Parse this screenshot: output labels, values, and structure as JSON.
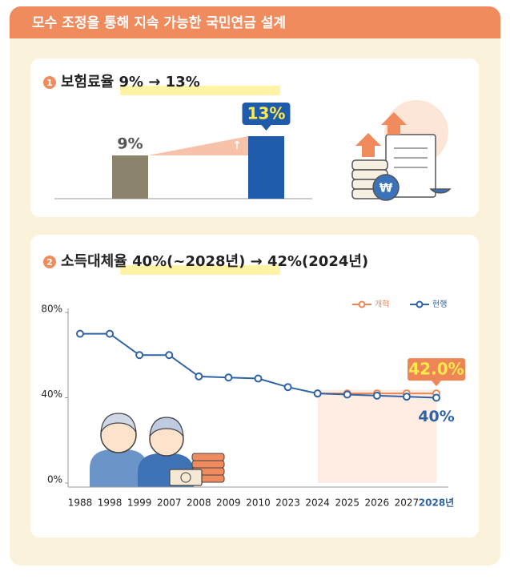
{
  "header": {
    "title": "모수 조정을 통해 지속 가능한 국민연금 설계"
  },
  "chart_data": [
    {
      "type": "bar",
      "badge": "1",
      "title": "보험료율 9% → 13%",
      "values": [
        9,
        13
      ],
      "value_labels": [
        "9%",
        "13%"
      ],
      "colors": [
        "#8c836c",
        "#1f5bab"
      ],
      "ylim": [
        0,
        14
      ]
    },
    {
      "type": "line",
      "badge": "2",
      "title": "소득대체율 40%(~2028년) → 42%(2024년)",
      "categories": [
        "1988",
        "1998",
        "1999",
        "2007",
        "2008",
        "2009",
        "2010",
        "2023",
        "2024",
        "2025",
        "2026",
        "2027",
        "2028년"
      ],
      "series": [
        {
          "name": "개혁",
          "color": "#ee8556",
          "values": [
            null,
            null,
            null,
            null,
            null,
            null,
            null,
            null,
            42,
            42,
            42,
            42,
            42
          ],
          "value_labels": [
            null,
            null,
            null,
            null,
            null,
            null,
            null,
            null,
            null,
            null,
            null,
            null,
            "42.0%"
          ]
        },
        {
          "name": "현행",
          "color": "#2f63a6",
          "values": [
            70,
            70,
            60,
            60,
            50,
            49.5,
            49,
            45,
            42,
            41.5,
            41,
            40.5,
            40
          ],
          "value_labels": [
            null,
            null,
            null,
            null,
            null,
            null,
            null,
            null,
            null,
            null,
            null,
            null,
            "40%"
          ]
        }
      ],
      "ylim": [
        0,
        80
      ],
      "yticks": [
        {
          "value": 0,
          "label": "0%"
        },
        {
          "value": 40,
          "label": "40%"
        },
        {
          "value": 80,
          "label": "80%"
        }
      ],
      "legend": "top-right"
    }
  ]
}
